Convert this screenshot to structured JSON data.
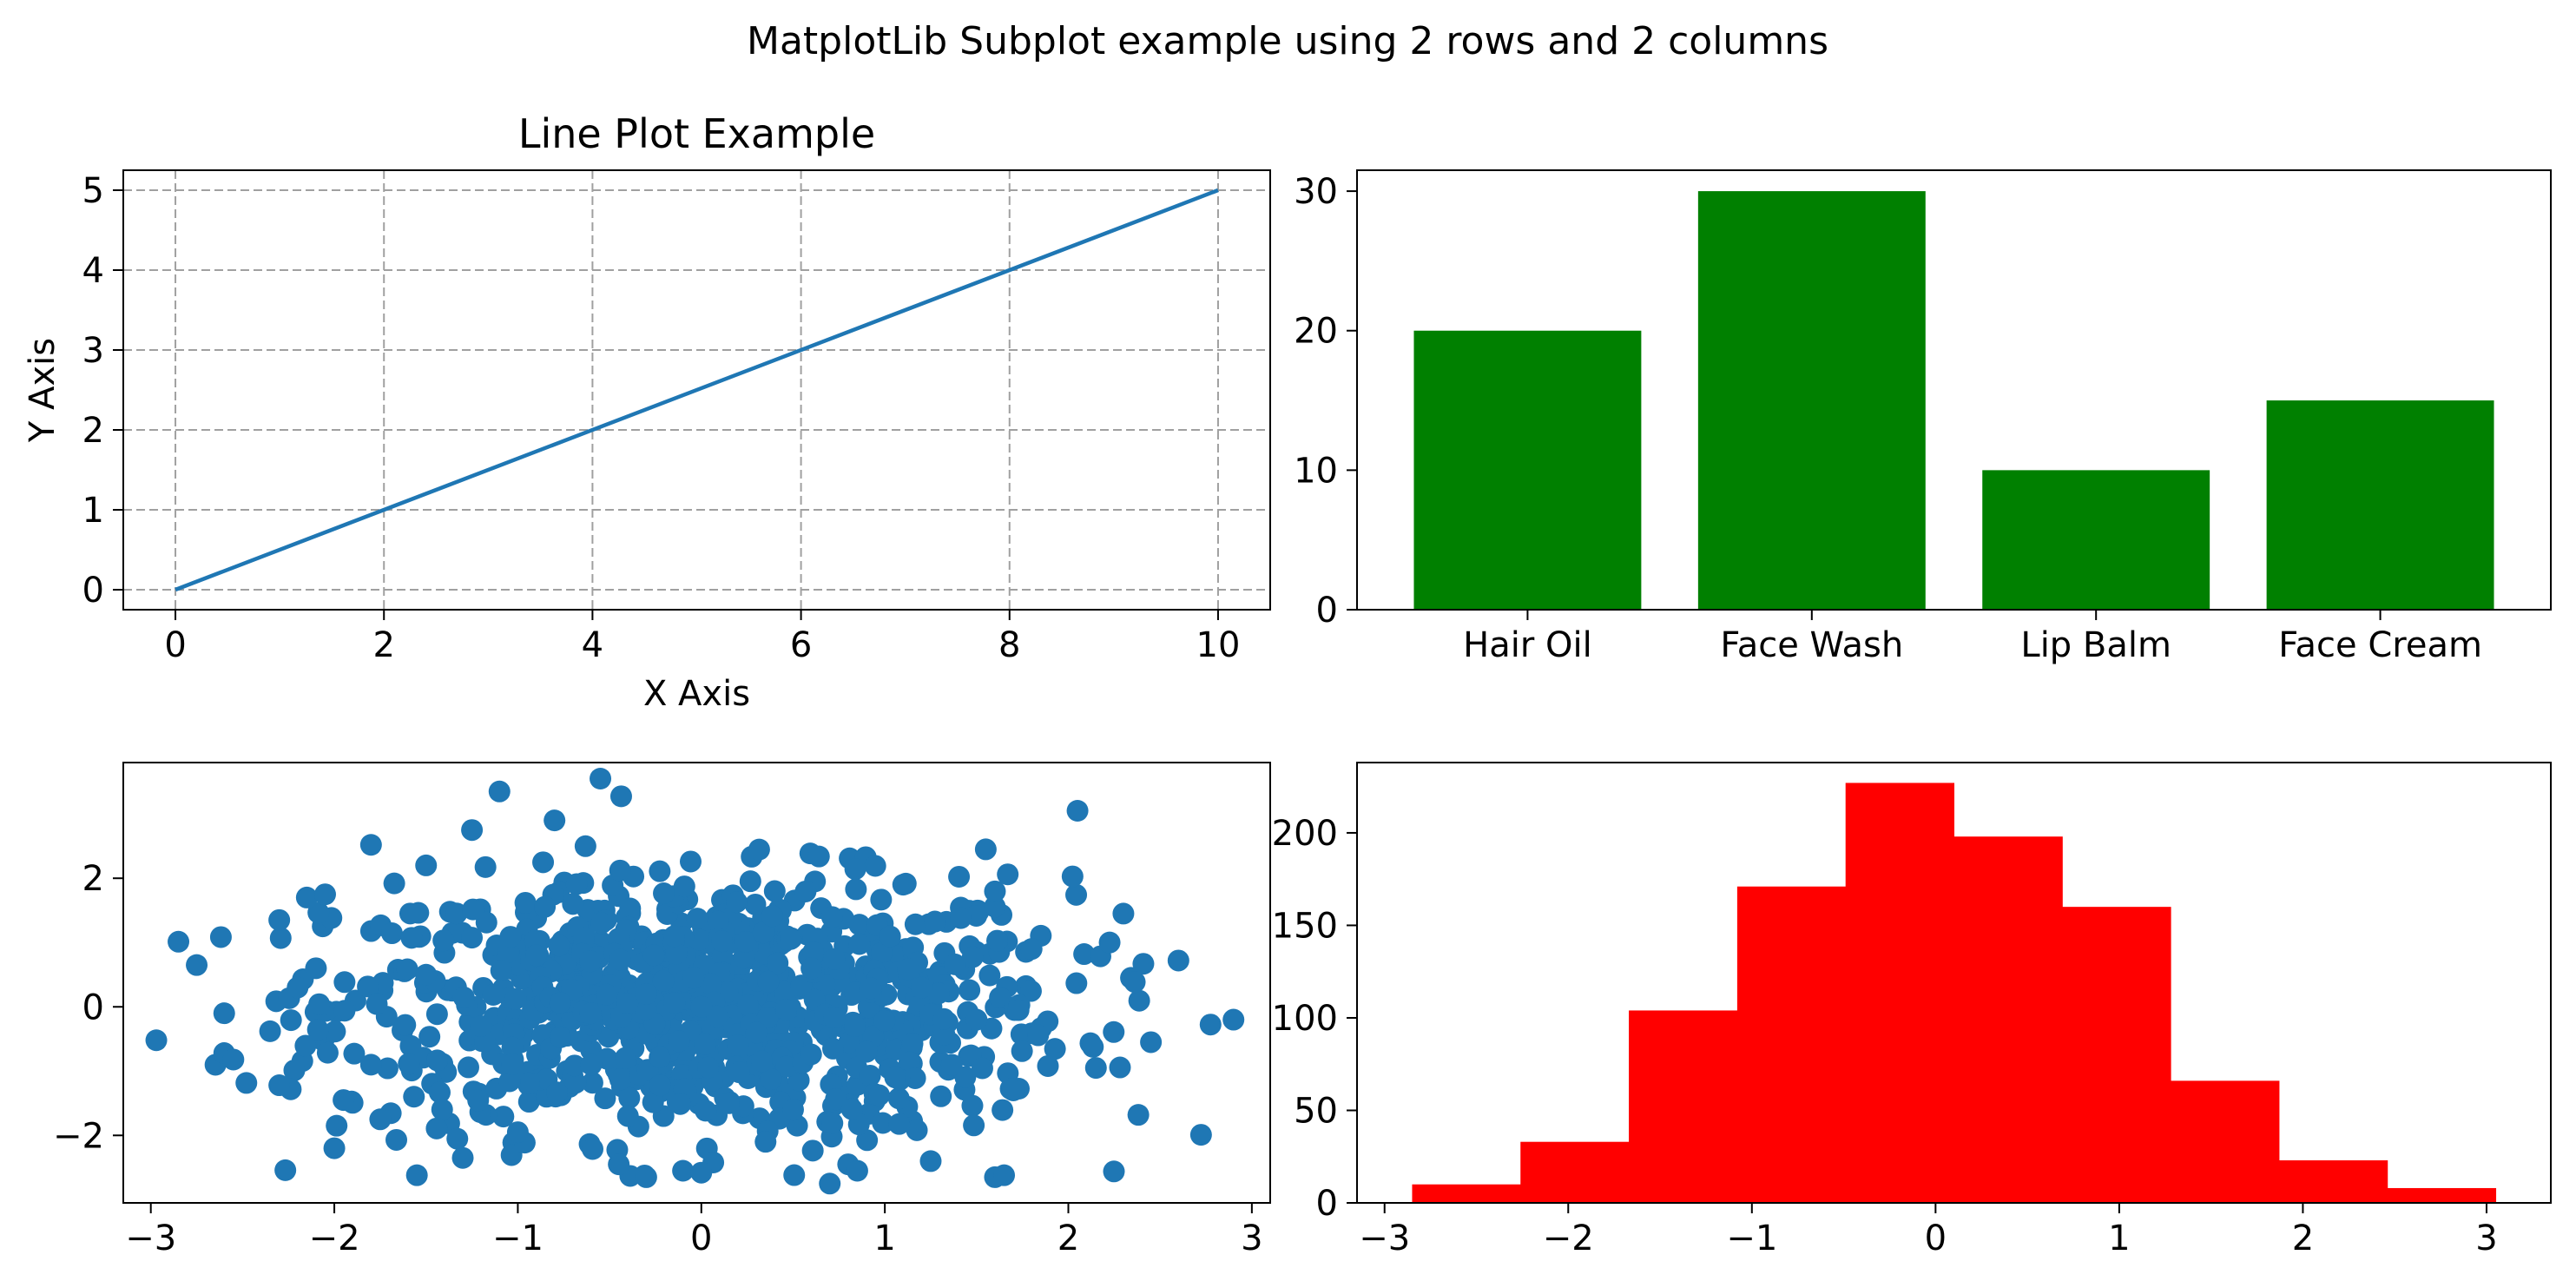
{
  "figure": {
    "suptitle": "MatplotLib Subplot example using 2 rows and 2 columns"
  },
  "colors": {
    "line": "#1f77b4",
    "bar": "#008000",
    "scatter": "#1f77b4",
    "hist": "#ff0000",
    "grid": "#a0a0a0"
  },
  "chart_data": [
    {
      "type": "line",
      "title": "Line Plot Example",
      "xlabel": "X Axis",
      "ylabel": "Y Axis",
      "x": [
        0,
        10
      ],
      "y": [
        0,
        5
      ],
      "xlim": [
        -0.5,
        10.5
      ],
      "ylim": [
        -0.25,
        5.25
      ],
      "xticks": [
        0,
        2,
        4,
        6,
        8,
        10
      ],
      "yticks": [
        0,
        1,
        2,
        3,
        4,
        5
      ],
      "grid": true,
      "grid_style": "dashed"
    },
    {
      "type": "bar",
      "title": "",
      "xlabel": "",
      "ylabel": "",
      "categories": [
        "Hair Oil",
        "Face Wash",
        "Lip Balm",
        "Face Cream"
      ],
      "values": [
        20,
        30,
        10,
        15
      ],
      "ylim": [
        0,
        31.5
      ],
      "yticks": [
        0,
        10,
        20,
        30
      ],
      "grid": false
    },
    {
      "type": "scatter",
      "title": "",
      "xlabel": "",
      "ylabel": "",
      "points_count_approx": 1000,
      "x_distribution": "normal, mean 0, sd 1",
      "y_distribution": "normal, mean 0, sd 1",
      "sample_points": [
        [
          -2.97,
          -0.52
        ],
        [
          -2.75,
          0.65
        ],
        [
          -2.6,
          -0.1
        ],
        [
          -2.6,
          -0.72
        ],
        [
          -2.55,
          -0.82
        ],
        [
          -2.35,
          -0.38
        ],
        [
          -2.3,
          1.35
        ],
        [
          -2.3,
          -1.22
        ],
        [
          -2.2,
          0.3
        ],
        [
          -2.15,
          1.7
        ],
        [
          -2.05,
          1.75
        ],
        [
          -2.0,
          -2.2
        ],
        [
          -1.95,
          -1.45
        ],
        [
          -1.8,
          2.52
        ],
        [
          -1.75,
          -1.75
        ],
        [
          -1.55,
          -2.62
        ],
        [
          -1.5,
          2.2
        ],
        [
          -1.3,
          -2.35
        ],
        [
          -1.25,
          2.75
        ],
        [
          -1.1,
          3.35
        ],
        [
          -1.0,
          -1.95
        ],
        [
          -0.8,
          2.9
        ],
        [
          -0.55,
          3.55
        ],
        [
          -0.45,
          -2.45
        ],
        [
          -0.3,
          -2.65
        ],
        [
          -0.1,
          -2.55
        ],
        [
          0.0,
          -2.58
        ],
        [
          0.15,
          -1.5
        ],
        [
          0.35,
          -2.1
        ],
        [
          0.7,
          -2.75
        ],
        [
          0.8,
          -2.45
        ],
        [
          0.85,
          -2.55
        ],
        [
          1.25,
          -2.4
        ],
        [
          1.55,
          2.45
        ],
        [
          1.6,
          -2.65
        ],
        [
          1.65,
          -2.62
        ],
        [
          2.05,
          3.05
        ],
        [
          2.3,
          1.45
        ],
        [
          2.45,
          -0.55
        ],
        [
          2.6,
          0.72
        ],
        [
          2.9,
          -0.2
        ],
        [
          -1.5,
          0.5
        ],
        [
          -1.2,
          -0.3
        ],
        [
          -0.9,
          0.8
        ],
        [
          -0.6,
          -0.9
        ],
        [
          -0.3,
          0.2
        ],
        [
          0.0,
          0.0
        ],
        [
          0.3,
          -0.4
        ],
        [
          0.6,
          0.6
        ],
        [
          0.9,
          -0.7
        ],
        [
          1.2,
          0.3
        ],
        [
          1.5,
          -0.2
        ],
        [
          1.8,
          0.9
        ],
        [
          -1.8,
          -0.9
        ],
        [
          -0.7,
          1.6
        ],
        [
          0.4,
          1.8
        ],
        [
          1.1,
          1.9
        ],
        [
          -0.4,
          -1.7
        ],
        [
          0.5,
          -1.6
        ],
        [
          1.7,
          -1.3
        ],
        [
          -2.1,
          0.6
        ]
      ],
      "xlim": [
        -3.15,
        3.1
      ],
      "ylim": [
        -3.05,
        3.8
      ],
      "xticks": [
        -3,
        -2,
        -1,
        0,
        1,
        2,
        3
      ],
      "yticks": [
        -2,
        0,
        2
      ],
      "grid": false
    },
    {
      "type": "histogram",
      "title": "",
      "xlabel": "",
      "ylabel": "",
      "bin_edges": [
        -2.85,
        -2.26,
        -1.67,
        -1.08,
        -0.49,
        0.1,
        0.69,
        1.28,
        1.87,
        2.46,
        3.05
      ],
      "counts": [
        10,
        33,
        104,
        171,
        227,
        198,
        160,
        66,
        23,
        8
      ],
      "xlim": [
        -3.15,
        3.35
      ],
      "ylim": [
        0,
        238
      ],
      "xticks": [
        -3,
        -2,
        -1,
        0,
        1,
        2,
        3
      ],
      "yticks": [
        0,
        50,
        100,
        150,
        200
      ],
      "grid": false
    }
  ]
}
